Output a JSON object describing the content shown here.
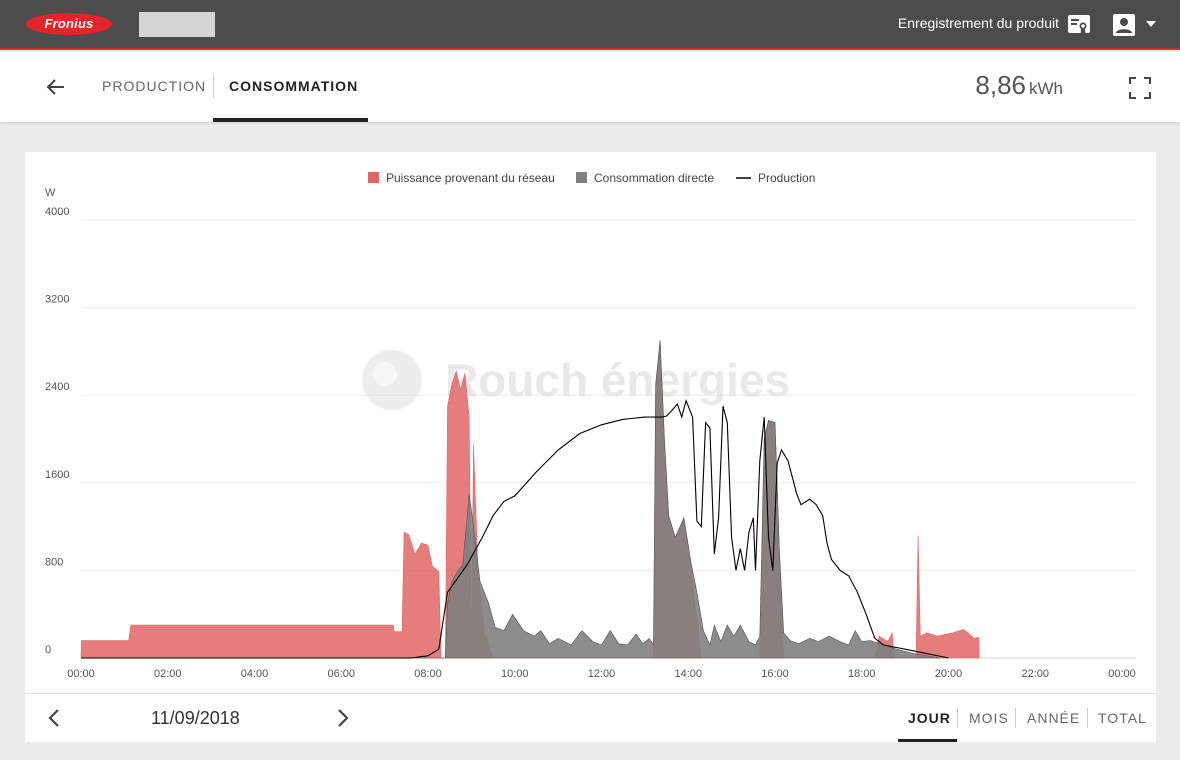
{
  "topbar": {
    "brand": "Fronius",
    "product_registration": "Enregistrement du produit",
    "icons": [
      "registration-icon",
      "user-icon",
      "caret-down-icon"
    ]
  },
  "subbar": {
    "tabs": [
      {
        "label": "PRODUCTION",
        "active": false
      },
      {
        "label": "CONSOMMATION",
        "active": true
      }
    ],
    "energy": {
      "value": "8,86",
      "unit": "kWh"
    }
  },
  "watermark": "Rouch énergies",
  "date_nav": {
    "date": "11/09/2018"
  },
  "periods": [
    {
      "label": "JOUR",
      "active": true
    },
    {
      "label": "MOIS",
      "active": false
    },
    {
      "label": "ANNÉE",
      "active": false
    },
    {
      "label": "TOTAL",
      "active": false
    }
  ],
  "colors": {
    "grid": "#e06666",
    "direct": "#808080",
    "production": "#000000",
    "accent": "#e3242b"
  },
  "chart_data": {
    "type": "area",
    "y_unit_label": "W",
    "ylim": [
      0,
      4000
    ],
    "y_ticks": [
      "0",
      "800",
      "1600",
      "2400",
      "3200",
      "4000"
    ],
    "x_ticks": [
      "00:00",
      "02:00",
      "04:00",
      "06:00",
      "08:00",
      "10:00",
      "12:00",
      "14:00",
      "16:00",
      "18:00",
      "20:00",
      "22:00",
      "00:00"
    ],
    "legend_position": "top-center",
    "grid": true,
    "series": [
      {
        "name": "Puissance provenant du réseau",
        "kind": "area",
        "points": [
          [
            0,
            0
          ],
          [
            0.01,
            160
          ],
          [
            1.1,
            160
          ],
          [
            1.15,
            300
          ],
          [
            7.2,
            300
          ],
          [
            7.22,
            240
          ],
          [
            7.4,
            240
          ],
          [
            7.45,
            1150
          ],
          [
            7.55,
            1130
          ],
          [
            7.7,
            950
          ],
          [
            7.85,
            1050
          ],
          [
            8.0,
            1030
          ],
          [
            8.1,
            840
          ],
          [
            8.25,
            790
          ],
          [
            8.3,
            0
          ],
          [
            8.4,
            0
          ],
          [
            8.45,
            2300
          ],
          [
            8.55,
            2500
          ],
          [
            8.65,
            2620
          ],
          [
            8.75,
            2450
          ],
          [
            8.85,
            2600
          ],
          [
            8.95,
            2200
          ],
          [
            9.0,
            0
          ],
          [
            9.05,
            1950
          ],
          [
            9.15,
            800
          ],
          [
            9.3,
            230
          ],
          [
            9.5,
            0
          ],
          [
            13.2,
            0
          ],
          [
            13.25,
            2500
          ],
          [
            13.35,
            2900
          ],
          [
            13.45,
            2000
          ],
          [
            13.55,
            1300
          ],
          [
            13.7,
            1100
          ],
          [
            13.9,
            1280
          ],
          [
            14.05,
            900
          ],
          [
            14.15,
            500
          ],
          [
            14.3,
            0
          ],
          [
            15.65,
            0
          ],
          [
            15.75,
            2000
          ],
          [
            15.85,
            2170
          ],
          [
            16.0,
            2150
          ],
          [
            16.1,
            1000
          ],
          [
            16.2,
            0
          ],
          [
            18.3,
            0
          ],
          [
            18.4,
            200
          ],
          [
            18.6,
            150
          ],
          [
            18.7,
            230
          ],
          [
            18.75,
            0
          ],
          [
            19.25,
            0
          ],
          [
            19.3,
            1120
          ],
          [
            19.35,
            200
          ],
          [
            19.5,
            230
          ],
          [
            19.75,
            200
          ],
          [
            20.1,
            230
          ],
          [
            20.35,
            260
          ],
          [
            20.6,
            180
          ],
          [
            20.7,
            190
          ],
          [
            20.71,
            0
          ]
        ]
      },
      {
        "name": "Consommation directe",
        "kind": "area",
        "points": [
          [
            0,
            0
          ],
          [
            8.4,
            0
          ],
          [
            8.45,
            500
          ],
          [
            8.55,
            700
          ],
          [
            8.7,
            800
          ],
          [
            8.8,
            850
          ],
          [
            8.95,
            1500
          ],
          [
            9.05,
            1200
          ],
          [
            9.2,
            700
          ],
          [
            9.4,
            500
          ],
          [
            9.55,
            280
          ],
          [
            9.75,
            250
          ],
          [
            9.95,
            400
          ],
          [
            10.2,
            250
          ],
          [
            10.45,
            200
          ],
          [
            10.6,
            250
          ],
          [
            10.8,
            130
          ],
          [
            11.0,
            180
          ],
          [
            11.3,
            120
          ],
          [
            11.55,
            250
          ],
          [
            11.8,
            150
          ],
          [
            12.0,
            120
          ],
          [
            12.2,
            250
          ],
          [
            12.4,
            130
          ],
          [
            12.6,
            120
          ],
          [
            12.8,
            220
          ],
          [
            12.95,
            130
          ],
          [
            13.1,
            180
          ],
          [
            13.2,
            120
          ],
          [
            13.25,
            2500
          ],
          [
            13.35,
            2900
          ],
          [
            13.45,
            2000
          ],
          [
            13.55,
            1300
          ],
          [
            13.7,
            1100
          ],
          [
            13.9,
            1280
          ],
          [
            14.05,
            900
          ],
          [
            14.2,
            600
          ],
          [
            14.35,
            250
          ],
          [
            14.5,
            120
          ],
          [
            14.6,
            300
          ],
          [
            14.75,
            150
          ],
          [
            14.9,
            300
          ],
          [
            15.05,
            200
          ],
          [
            15.2,
            300
          ],
          [
            15.4,
            150
          ],
          [
            15.55,
            120
          ],
          [
            15.65,
            200
          ],
          [
            15.75,
            2000
          ],
          [
            15.85,
            2170
          ],
          [
            16.0,
            2150
          ],
          [
            16.1,
            1000
          ],
          [
            16.2,
            230
          ],
          [
            16.35,
            160
          ],
          [
            16.55,
            130
          ],
          [
            16.8,
            180
          ],
          [
            17.0,
            150
          ],
          [
            17.25,
            200
          ],
          [
            17.5,
            150
          ],
          [
            17.7,
            120
          ],
          [
            17.85,
            250
          ],
          [
            18.0,
            150
          ],
          [
            18.2,
            160
          ],
          [
            18.5,
            120
          ],
          [
            18.8,
            80
          ],
          [
            19.2,
            40
          ],
          [
            19.8,
            0
          ]
        ]
      },
      {
        "name": "Production",
        "kind": "line",
        "points": [
          [
            0,
            0
          ],
          [
            7.6,
            0
          ],
          [
            8.0,
            20
          ],
          [
            8.25,
            80
          ],
          [
            8.45,
            600
          ],
          [
            8.9,
            850
          ],
          [
            9.25,
            1100
          ],
          [
            9.5,
            1300
          ],
          [
            9.75,
            1430
          ],
          [
            10.0,
            1480
          ],
          [
            10.5,
            1700
          ],
          [
            11.0,
            1900
          ],
          [
            11.5,
            2050
          ],
          [
            12.0,
            2130
          ],
          [
            12.5,
            2180
          ],
          [
            13.0,
            2200
          ],
          [
            13.4,
            2200
          ],
          [
            13.5,
            2210
          ],
          [
            13.6,
            2250
          ],
          [
            13.75,
            2320
          ],
          [
            13.85,
            2200
          ],
          [
            13.95,
            2350
          ],
          [
            14.1,
            2200
          ],
          [
            14.2,
            1250
          ],
          [
            14.3,
            1200
          ],
          [
            14.4,
            2150
          ],
          [
            14.5,
            2100
          ],
          [
            14.6,
            950
          ],
          [
            14.7,
            1280
          ],
          [
            14.8,
            2300
          ],
          [
            14.9,
            2150
          ],
          [
            15.0,
            1100
          ],
          [
            15.1,
            800
          ],
          [
            15.2,
            1000
          ],
          [
            15.3,
            800
          ],
          [
            15.4,
            1150
          ],
          [
            15.5,
            1280
          ],
          [
            15.55,
            800
          ],
          [
            15.65,
            1800
          ],
          [
            15.75,
            2200
          ],
          [
            15.85,
            1100
          ],
          [
            15.95,
            800
          ],
          [
            16.05,
            1780
          ],
          [
            16.15,
            1900
          ],
          [
            16.3,
            1800
          ],
          [
            16.5,
            1500
          ],
          [
            16.6,
            1400
          ],
          [
            16.8,
            1450
          ],
          [
            16.95,
            1400
          ],
          [
            17.1,
            1300
          ],
          [
            17.2,
            1050
          ],
          [
            17.3,
            900
          ],
          [
            17.5,
            800
          ],
          [
            17.7,
            750
          ],
          [
            17.9,
            600
          ],
          [
            18.1,
            400
          ],
          [
            18.3,
            180
          ],
          [
            18.5,
            120
          ],
          [
            19.0,
            80
          ],
          [
            19.5,
            40
          ],
          [
            20.0,
            0
          ]
        ]
      }
    ]
  }
}
